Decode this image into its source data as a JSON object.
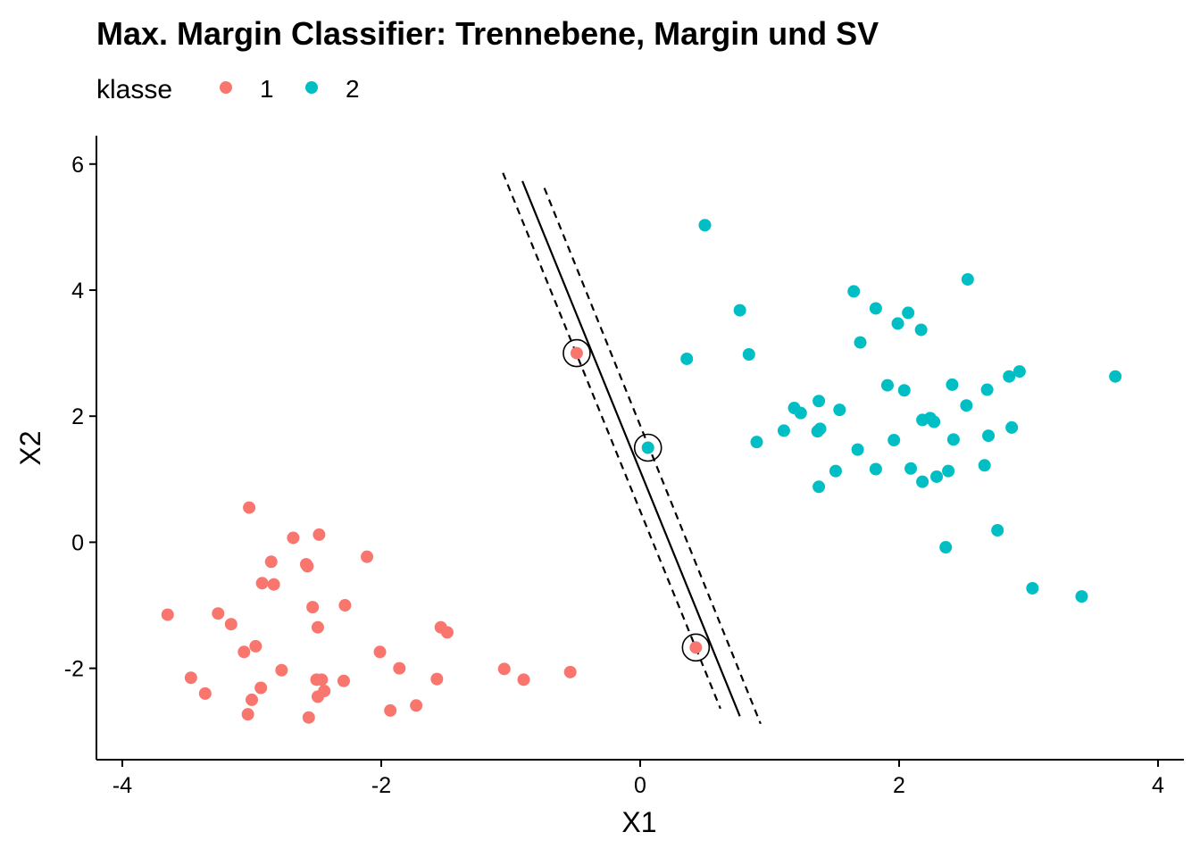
{
  "chart_data": {
    "type": "scatter",
    "title": "Max. Margin Classifier: Trennebene, Margin und SV",
    "xlabel": "X1",
    "ylabel": "X2",
    "xlim": [
      -4.2,
      4.2
    ],
    "ylim": [
      -3.45,
      6.45
    ],
    "xticks": [
      -4,
      -2,
      0,
      2,
      4
    ],
    "yticks": [
      -2,
      0,
      2,
      4,
      6
    ],
    "xtick_labels": [
      "-4",
      "-2",
      "0",
      "2",
      "4"
    ],
    "ytick_labels": [
      "-2",
      "0",
      "2",
      "4",
      "6"
    ],
    "grid": false,
    "legend": {
      "title": "klasse",
      "placement": "top-left",
      "entries": [
        {
          "label": "1",
          "color": "#F8766D"
        },
        {
          "label": "2",
          "color": "#00BFC4"
        }
      ]
    },
    "series": [
      {
        "name": "1",
        "color": "#F8766D",
        "points": [
          [
            -3.02,
            0.55
          ],
          [
            -2.68,
            0.07
          ],
          [
            -2.48,
            0.12
          ],
          [
            -2.85,
            -0.31
          ],
          [
            -2.58,
            -0.35
          ],
          [
            -2.57,
            -0.38
          ],
          [
            -2.11,
            -0.23
          ],
          [
            -2.92,
            -0.65
          ],
          [
            -2.83,
            -0.67
          ],
          [
            -3.65,
            -1.15
          ],
          [
            -3.26,
            -1.13
          ],
          [
            -3.16,
            -1.3
          ],
          [
            -2.53,
            -1.03
          ],
          [
            -2.49,
            -1.35
          ],
          [
            -2.28,
            -1.0
          ],
          [
            -1.54,
            -1.35
          ],
          [
            -1.49,
            -1.43
          ],
          [
            -2.97,
            -1.65
          ],
          [
            -3.06,
            -1.74
          ],
          [
            -2.01,
            -1.74
          ],
          [
            -2.77,
            -2.03
          ],
          [
            -1.86,
            -2.0
          ],
          [
            -3.47,
            -2.15
          ],
          [
            -2.5,
            -2.18
          ],
          [
            -2.46,
            -2.18
          ],
          [
            -2.29,
            -2.2
          ],
          [
            -1.57,
            -2.17
          ],
          [
            -2.93,
            -2.31
          ],
          [
            -2.44,
            -2.36
          ],
          [
            -3.36,
            -2.4
          ],
          [
            -2.49,
            -2.45
          ],
          [
            -3.0,
            -2.5
          ],
          [
            -1.93,
            -2.67
          ],
          [
            -1.73,
            -2.59
          ],
          [
            -3.03,
            -2.73
          ],
          [
            -2.56,
            -2.78
          ],
          [
            -1.05,
            -2.01
          ],
          [
            -0.9,
            -2.18
          ],
          [
            -0.54,
            -2.06
          ],
          [
            -0.49,
            3.0
          ],
          [
            0.43,
            -1.67
          ]
        ]
      },
      {
        "name": "2",
        "color": "#00BFC4",
        "points": [
          [
            0.5,
            5.03
          ],
          [
            2.53,
            4.17
          ],
          [
            1.65,
            3.98
          ],
          [
            0.77,
            3.68
          ],
          [
            1.82,
            3.71
          ],
          [
            2.07,
            3.64
          ],
          [
            1.99,
            3.47
          ],
          [
            2.17,
            3.37
          ],
          [
            1.7,
            3.17
          ],
          [
            0.84,
            2.98
          ],
          [
            0.36,
            2.91
          ],
          [
            3.67,
            2.63
          ],
          [
            2.93,
            2.71
          ],
          [
            2.85,
            2.63
          ],
          [
            1.91,
            2.49
          ],
          [
            2.04,
            2.41
          ],
          [
            2.41,
            2.5
          ],
          [
            2.68,
            2.42
          ],
          [
            1.38,
            2.24
          ],
          [
            1.54,
            2.1
          ],
          [
            1.19,
            2.13
          ],
          [
            1.24,
            2.05
          ],
          [
            2.52,
            2.17
          ],
          [
            2.18,
            1.94
          ],
          [
            2.24,
            1.97
          ],
          [
            2.27,
            1.91
          ],
          [
            1.11,
            1.77
          ],
          [
            1.37,
            1.76
          ],
          [
            1.39,
            1.8
          ],
          [
            2.87,
            1.82
          ],
          [
            2.69,
            1.69
          ],
          [
            0.06,
            1.5
          ],
          [
            0.9,
            1.59
          ],
          [
            1.96,
            1.62
          ],
          [
            2.42,
            1.63
          ],
          [
            1.68,
            1.47
          ],
          [
            1.51,
            1.13
          ],
          [
            1.82,
            1.16
          ],
          [
            2.09,
            1.17
          ],
          [
            2.38,
            1.13
          ],
          [
            2.66,
            1.22
          ],
          [
            2.29,
            1.04
          ],
          [
            2.18,
            0.96
          ],
          [
            1.38,
            0.88
          ],
          [
            2.76,
            0.19
          ],
          [
            2.36,
            -0.08
          ],
          [
            3.03,
            -0.73
          ],
          [
            3.41,
            -0.86
          ]
        ]
      }
    ],
    "support_vectors": [
      [
        -0.49,
        3.0
      ],
      [
        0.06,
        1.5
      ],
      [
        0.43,
        -1.67
      ]
    ],
    "hyperplane": {
      "style": "solid",
      "from": [
        -0.91,
        5.73
      ],
      "to": [
        0.77,
        -2.76
      ]
    },
    "margins": [
      {
        "style": "dashed",
        "from": [
          -1.06,
          5.86
        ],
        "to": [
          0.62,
          -2.64
        ]
      },
      {
        "style": "dashed",
        "from": [
          -0.74,
          5.62
        ],
        "to": [
          0.93,
          -2.88
        ]
      }
    ]
  }
}
